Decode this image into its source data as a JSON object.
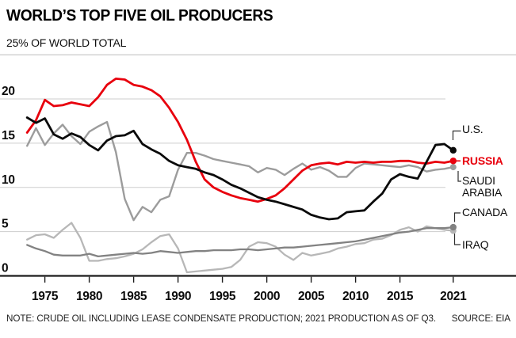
{
  "header": {
    "title": "WORLD’S TOP FIVE OIL PRODUCERS",
    "subtitle": "25% OF WORLD TOTAL"
  },
  "footer": {
    "note": "NOTE: CRUDE OIL INCLUDING LEASE CONDENSATE PRODUCTION; 2021 PRODUCTION AS OF Q3.",
    "source": "SOURCE: EIA"
  },
  "colors": {
    "accent_red": "#e8000d",
    "us_black": "#0a0a0a",
    "saudi_gray": "#9c9c9c",
    "canada_gray": "#828282",
    "iraq_gray": "#b7b7b7",
    "gridline": "#cdcdcd",
    "axis": "#1c1c1c"
  },
  "chart_data": {
    "type": "line",
    "title": "WORLD’S TOP FIVE OIL PRODUCERS",
    "ylabel": "25% OF WORLD TOTAL",
    "xlabel": "",
    "xlim": [
      1973,
      2021
    ],
    "ylim": [
      0,
      25
    ],
    "grid": "horizontal",
    "legend_position": "right-end-labels",
    "x_start": 1973,
    "x_ticks": [
      1975,
      1980,
      1985,
      1990,
      1995,
      2000,
      2005,
      2010,
      2015,
      2021
    ],
    "y_ticks": [
      0,
      5,
      10,
      15,
      20
    ],
    "series": [
      {
        "name": "U.S.",
        "label": "U.S.",
        "slug": "us",
        "color": "#0a0a0a",
        "values": [
          17.9,
          17.3,
          17.8,
          16.0,
          15.5,
          16.1,
          15.7,
          14.8,
          14.2,
          15.3,
          15.8,
          15.9,
          16.4,
          14.9,
          14.3,
          13.8,
          13.0,
          12.5,
          12.3,
          12.1,
          11.7,
          11.4,
          10.9,
          10.3,
          9.9,
          9.4,
          8.9,
          8.6,
          8.4,
          8.1,
          7.8,
          7.5,
          6.9,
          6.6,
          6.4,
          6.5,
          7.2,
          7.3,
          7.4,
          8.4,
          9.3,
          10.9,
          11.5,
          11.2,
          11.0,
          12.9,
          14.8,
          14.9,
          14.2
        ]
      },
      {
        "name": "RUSSIA",
        "label": "RUSSIA",
        "slug": "russia",
        "color": "#e8000d",
        "values": [
          16.2,
          17.6,
          19.9,
          19.2,
          19.3,
          19.6,
          19.4,
          19.2,
          20.2,
          21.6,
          22.3,
          22.2,
          21.6,
          21.4,
          21.0,
          20.3,
          19.0,
          17.4,
          15.4,
          12.9,
          10.9,
          10.0,
          9.5,
          9.1,
          8.8,
          8.6,
          8.4,
          8.7,
          9.1,
          9.9,
          10.9,
          11.9,
          12.5,
          12.7,
          12.8,
          12.6,
          12.9,
          12.8,
          12.9,
          12.8,
          12.9,
          12.9,
          13.0,
          13.0,
          12.8,
          12.7,
          12.9,
          12.8,
          13.0
        ]
      },
      {
        "name": "SAUDI ARABIA",
        "label": "SAUDI ARABIA",
        "slug": "saudi-arabia",
        "color": "#9c9c9c",
        "values": [
          14.7,
          16.7,
          14.8,
          16.1,
          17.1,
          15.8,
          14.9,
          16.3,
          16.9,
          17.4,
          14.0,
          8.7,
          6.3,
          7.8,
          7.2,
          8.6,
          9.0,
          12.0,
          13.9,
          13.9,
          13.6,
          13.2,
          13.0,
          12.8,
          12.6,
          12.4,
          11.7,
          12.2,
          12.0,
          11.4,
          12.1,
          12.7,
          12.0,
          12.3,
          11.9,
          11.2,
          11.2,
          12.2,
          12.7,
          12.6,
          12.5,
          12.4,
          12.3,
          12.5,
          12.3,
          11.8,
          12.0,
          12.1,
          12.3
        ]
      },
      {
        "name": "CANADA",
        "label": "CANADA",
        "slug": "canada",
        "color": "#828282",
        "values": [
          3.5,
          3.1,
          2.8,
          2.4,
          2.3,
          2.3,
          2.3,
          2.5,
          2.2,
          2.3,
          2.4,
          2.5,
          2.6,
          2.5,
          2.6,
          2.8,
          2.7,
          2.6,
          2.7,
          2.8,
          2.8,
          2.9,
          2.9,
          2.9,
          3.0,
          3.0,
          2.9,
          3.0,
          3.1,
          3.2,
          3.2,
          3.3,
          3.4,
          3.5,
          3.6,
          3.7,
          3.8,
          3.9,
          4.1,
          4.3,
          4.5,
          4.7,
          4.9,
          5.0,
          5.2,
          5.4,
          5.4,
          5.4,
          5.5
        ]
      },
      {
        "name": "IRAQ",
        "label": "IRAQ",
        "slug": "iraq",
        "color": "#b7b7b7",
        "values": [
          4.1,
          4.6,
          4.7,
          4.3,
          5.2,
          6.0,
          4.3,
          1.7,
          1.7,
          1.9,
          2.0,
          2.2,
          2.5,
          3.0,
          3.8,
          4.5,
          4.7,
          3.1,
          0.4,
          0.5,
          0.6,
          0.7,
          0.8,
          1.0,
          1.8,
          3.3,
          3.8,
          3.7,
          3.3,
          2.4,
          1.8,
          2.6,
          2.3,
          2.5,
          2.7,
          3.1,
          3.3,
          3.6,
          3.7,
          4.1,
          4.2,
          4.6,
          5.2,
          5.5,
          5.0,
          5.6,
          5.4,
          5.2,
          5.1
        ]
      }
    ]
  }
}
